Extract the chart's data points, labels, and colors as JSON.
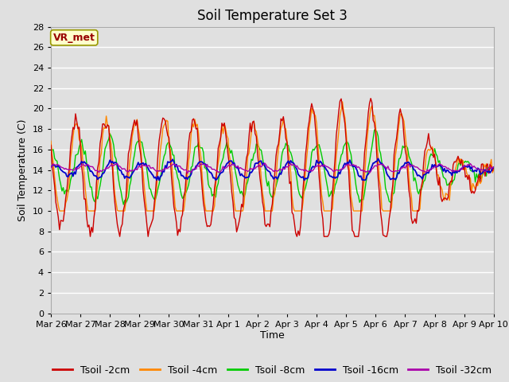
{
  "title": "Soil Temperature Set 3",
  "xlabel": "Time",
  "ylabel": "Soil Temperature (C)",
  "ylim": [
    0,
    28
  ],
  "yticks": [
    0,
    2,
    4,
    6,
    8,
    10,
    12,
    14,
    16,
    18,
    20,
    22,
    24,
    26,
    28
  ],
  "series_colors": {
    "Tsoil -2cm": "#cc0000",
    "Tsoil -4cm": "#ff8800",
    "Tsoil -8cm": "#00cc00",
    "Tsoil -16cm": "#0000cc",
    "Tsoil -32cm": "#aa00aa"
  },
  "annotation_text": "VR_met",
  "annotation_color": "#990000",
  "annotation_bg": "#ffffcc",
  "annotation_border": "#999900",
  "bg_color": "#e0e0e0",
  "grid_color": "#ffffff",
  "title_fontsize": 12,
  "axis_fontsize": 9,
  "tick_fontsize": 8,
  "legend_fontsize": 9,
  "x_tick_labels": [
    "Mar 26",
    "Mar 27",
    "Mar 28",
    "Mar 29",
    "Mar 30",
    "Mar 31",
    "Apr 1",
    "Apr 2",
    "Apr 3",
    "Apr 4",
    "Apr 5",
    "Apr 6",
    "Apr 7",
    "Apr 8",
    "Apr 9",
    "Apr 10"
  ],
  "x_tick_positions": [
    0,
    1,
    2,
    3,
    4,
    5,
    6,
    7,
    8,
    9,
    10,
    11,
    12,
    13,
    14,
    15
  ],
  "figsize": [
    6.4,
    4.8
  ],
  "dpi": 100
}
